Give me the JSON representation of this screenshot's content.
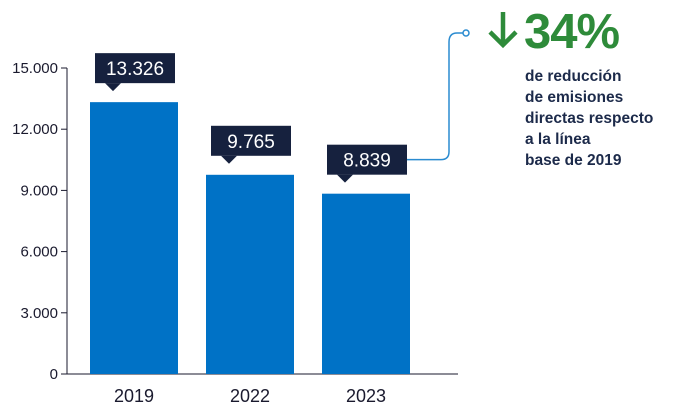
{
  "chart_data": {
    "type": "bar",
    "categories": [
      "2019",
      "2022",
      "2023"
    ],
    "values": [
      13326,
      9765,
      8839
    ],
    "value_labels": [
      "13.326",
      "9.765",
      "8.839"
    ],
    "yticks": [
      "0",
      "3.000",
      "6.000",
      "9.000",
      "12.000",
      "15.000"
    ],
    "ylim": [
      0,
      15000
    ],
    "grid": false,
    "title": "",
    "xlabel": "",
    "ylabel": ""
  },
  "callout": {
    "percent": "34%",
    "description": "de reducción\nde emisiones\ndirectas respecto\na la línea\nbase de 2019",
    "icon": "down-arrow-icon"
  },
  "colors": {
    "bar": "#0072c6",
    "label_box": "#16213e",
    "accent_green": "#2e8b3a",
    "connector": "#2a8bd0",
    "axis": "#1a1a2e"
  }
}
